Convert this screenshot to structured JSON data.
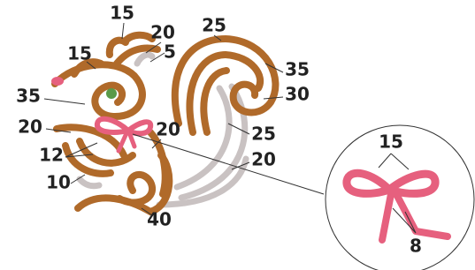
{
  "labels": [
    "15",
    "20",
    "5",
    "25",
    "15",
    "35",
    "30",
    "35",
    "20",
    "20",
    "25",
    "12",
    "20",
    "10",
    "40"
  ],
  "inset_labels": [
    "15",
    "8"
  ]
}
